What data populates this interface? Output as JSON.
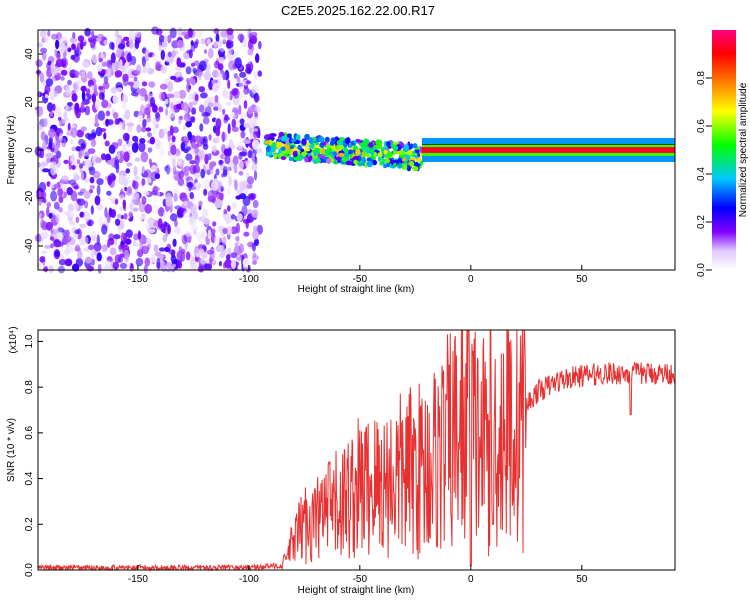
{
  "title": "C2E5.2025.162.22.00.R17",
  "chart_data": [
    {
      "type": "heatmap",
      "xlabel": "Height of straight line (km)",
      "ylabel": "Frequency (Hz)",
      "xlim": [
        -195,
        92
      ],
      "ylim": [
        -50,
        50
      ],
      "x_ticks": [
        "-150",
        "-100",
        "-50",
        "0",
        "50"
      ],
      "y_ticks": [
        "-40",
        "-20",
        "0",
        "20",
        "40"
      ],
      "colorbar": {
        "label": "Normalized spectral amplitude",
        "range": [
          0,
          1
        ],
        "ticks": [
          "0.0",
          "0.2",
          "0.4",
          "0.6",
          "0.8"
        ],
        "colors": [
          "#ffffff",
          "#8000ff",
          "#0000ff",
          "#00c8ff",
          "#00ff00",
          "#ffff00",
          "#ff8000",
          "#ff0000",
          "#ff0080"
        ]
      },
      "regions": [
        {
          "x_range": [
            -195,
            -95
          ],
          "description_level": 0.15,
          "spread_hz": 50
        },
        {
          "x_range": [
            -92,
            -22
          ],
          "center_freq": [
            2,
            -3
          ],
          "level": 0.45
        },
        {
          "x_range": [
            -22,
            92
          ],
          "center_freq": 0,
          "level": 0.95
        }
      ]
    },
    {
      "type": "line",
      "xlabel": "Height of straight line (km)",
      "ylabel": "SNR (10 * v/v)",
      "y_multiplier": "(x10⁴)",
      "xlim": [
        -195,
        92
      ],
      "ylim": [
        0,
        1.05
      ],
      "x_ticks": [
        "-150",
        "-100",
        "-50",
        "0",
        "50"
      ],
      "y_ticks": [
        "0.0",
        "0.2",
        "0.4",
        "0.6",
        "0.8",
        "1.0"
      ],
      "series": [
        {
          "color": "#e83030",
          "x": [
            -195,
            -180,
            -160,
            -140,
            -120,
            -100,
            -85,
            -80,
            -75,
            -70,
            -60,
            -50,
            -40,
            -30,
            -20,
            -10,
            -5,
            0,
            5,
            10,
            15,
            20,
            25,
            30,
            40,
            50,
            60,
            70,
            80,
            92
          ],
          "y": [
            0.01,
            0.01,
            0.01,
            0.01,
            0.01,
            0.01,
            0.02,
            0.12,
            0.2,
            0.22,
            0.28,
            0.36,
            0.38,
            0.42,
            0.45,
            0.55,
            0.6,
            0.62,
            0.55,
            0.6,
            0.62,
            0.66,
            0.72,
            0.78,
            0.83,
            0.85,
            0.86,
            0.86,
            0.86,
            0.86
          ]
        }
      ]
    }
  ]
}
